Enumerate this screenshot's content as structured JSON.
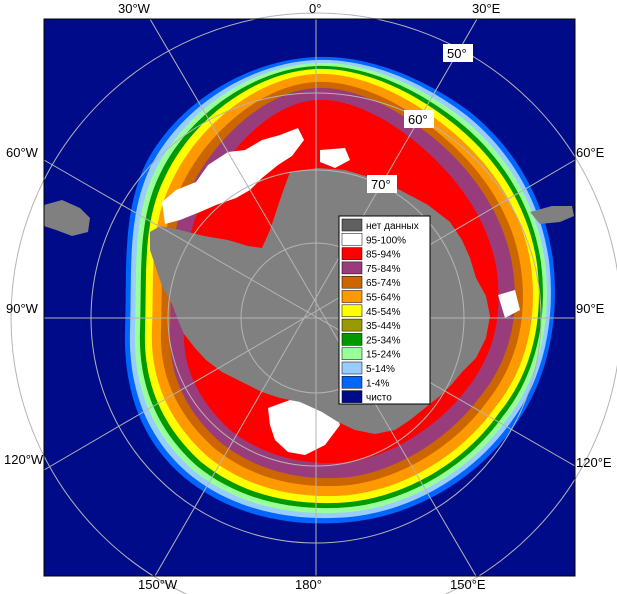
{
  "map": {
    "colors": {
      "open_water": "#000b8a",
      "land": "#808080",
      "no_data": "#808080",
      "grid": "#b4b4b4",
      "coastline": "#000000"
    },
    "lon_labels": {
      "top": [
        "30°W",
        "0°",
        "30°E"
      ],
      "left": [
        "60°W",
        "90°W",
        "120°W"
      ],
      "right": [
        "60°E",
        "90°E",
        "120°E"
      ],
      "bottom": [
        "150°W",
        "180°",
        "150°E"
      ]
    },
    "lat_labels": [
      "50°",
      "60°",
      "70°"
    ]
  },
  "legend": {
    "items": [
      {
        "label": "нет данных",
        "color": "#606060"
      },
      {
        "label": "95-100%",
        "color": "#ffffff"
      },
      {
        "label": "85-94%",
        "color": "#ff0000"
      },
      {
        "label": "75-84%",
        "color": "#983c7c"
      },
      {
        "label": "65-74%",
        "color": "#cc6600"
      },
      {
        "label": "55-64%",
        "color": "#ff9900"
      },
      {
        "label": "45-54%",
        "color": "#ffff00"
      },
      {
        "label": "35-44%",
        "color": "#999900"
      },
      {
        "label": "25-34%",
        "color": "#009900"
      },
      {
        "label": "15-24%",
        "color": "#99ff99"
      },
      {
        "label": "5-14%",
        "color": "#99ccff"
      },
      {
        "label": "1-4%",
        "color": "#0066ff"
      },
      {
        "label": "чисто",
        "color": "#000b8a"
      }
    ]
  }
}
